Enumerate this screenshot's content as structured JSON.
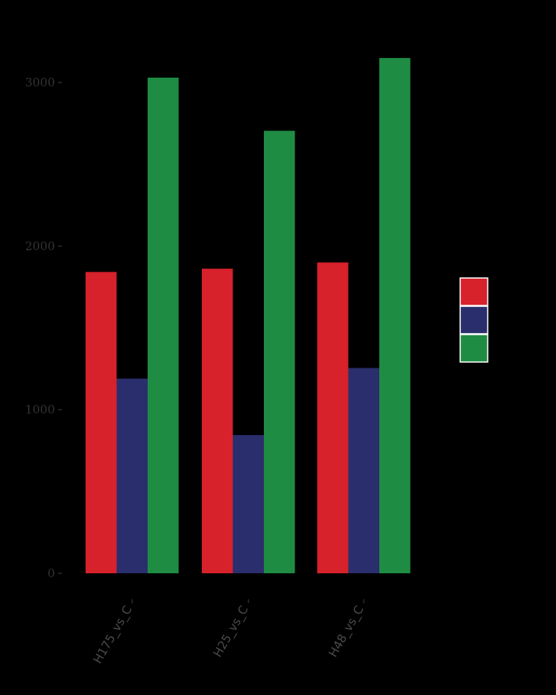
{
  "chart_data": {
    "type": "bar",
    "categories": [
      "H175_vs_C",
      "H25_vs_C",
      "H48_vs_C"
    ],
    "series": [
      {
        "color": "#d7212b",
        "values": [
          1842,
          1862,
          1900
        ]
      },
      {
        "color": "#2a2e6c",
        "values": [
          1190,
          845,
          1255
        ]
      },
      {
        "color": "#1f8c44",
        "values": [
          3030,
          2705,
          3150
        ]
      }
    ],
    "yticks": [
      0,
      1000,
      2000,
      3000
    ],
    "ylim": [
      0,
      3150
    ],
    "grid": false,
    "legend": "right"
  },
  "colors": {
    "background": "#000000",
    "legend_border": "#ffffff"
  }
}
